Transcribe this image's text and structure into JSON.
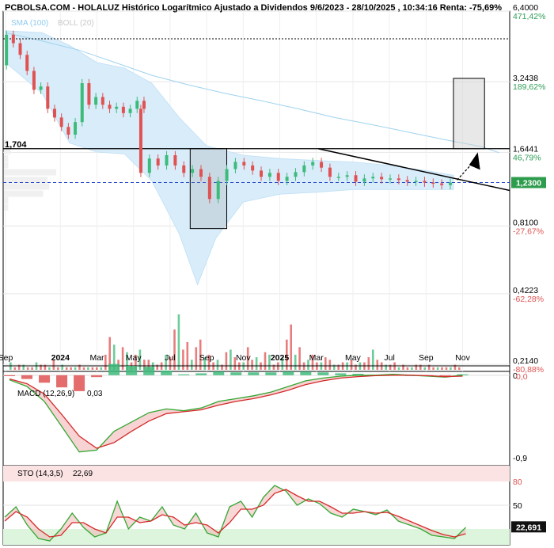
{
  "title": "PCBOLSA.COM - HOLALUZ Histórico Logarítmico Ajustado a Dividendos 9/6/2023 - 28/10/2025 , 10:34:16 Renta: -75,69%",
  "colors": {
    "up": "#3dbb7a",
    "down": "#e05252",
    "sma": "#9fd2ef",
    "bollinger_fill": "#d8ecfa",
    "macd_line": "#33a833",
    "signal_line": "#d42a2a",
    "price_label_bg": "#2e9c4d",
    "sto_band_high": "#fbe3e3",
    "sto_band_low": "#ddf5dd",
    "level_line": "#000000",
    "current_line": "#2244cc"
  },
  "chart_data": [
    {
      "type": "candlestick",
      "name": "price",
      "scale": "log",
      "ylim": [
        0.2,
        6.4
      ],
      "legend": {
        "sma": "SMA (100)",
        "bollinger": "BOLL (20)",
        "placement": "top-left"
      },
      "y_ticks": [
        {
          "value": 6.4,
          "label": "6,4000",
          "pct": "471,42%",
          "pct_color": "#2f9e57"
        },
        {
          "value": 3.2438,
          "label": "3,2438",
          "pct": "189,62%",
          "pct_color": "#2f9e57"
        },
        {
          "value": 1.6441,
          "label": "1,6441",
          "pct": "46,79%",
          "pct_color": "#2f9e57"
        },
        {
          "value": 0.81,
          "label": "0,8100",
          "pct": "-27,67%",
          "pct_color": "#e05252"
        },
        {
          "value": 0.4223,
          "label": "0,4223",
          "pct": "-62,28%",
          "pct_color": "#e05252"
        },
        {
          "value": 0.214,
          "label": "0,2140",
          "pct": "-80,88%",
          "pct_color": "#e05252"
        }
      ],
      "x_ticks": [
        {
          "month": 0,
          "label": "Sep",
          "bold": false
        },
        {
          "month": 3,
          "label": "2024",
          "bold": true
        },
        {
          "month": 5,
          "label": "Mar",
          "bold": false
        },
        {
          "month": 7,
          "label": "May",
          "bold": false
        },
        {
          "month": 9,
          "label": "Jul",
          "bold": false
        },
        {
          "month": 11,
          "label": "Sep",
          "bold": false
        },
        {
          "month": 13,
          "label": "Nov",
          "bold": false
        },
        {
          "month": 15,
          "label": "2025",
          "bold": true
        },
        {
          "month": 17,
          "label": "Mar",
          "bold": false
        },
        {
          "month": 19,
          "label": "May",
          "bold": false
        },
        {
          "month": 21,
          "label": "Jul",
          "bold": false
        },
        {
          "month": 23,
          "label": "Sep",
          "bold": false
        },
        {
          "month": 25,
          "label": "Nov",
          "bold": false
        }
      ],
      "level_label": "1,704",
      "level_value": 1.704,
      "top_level_value": 4.9,
      "current_price": 1.23,
      "current_label": "1,2300",
      "candles": [
        [
          3.8,
          5.1
        ],
        [
          5.1,
          4.7
        ],
        [
          4.7,
          4.2
        ],
        [
          4.2,
          3.6
        ],
        [
          3.6,
          3.0
        ],
        [
          3.0,
          3.1
        ],
        [
          3.1,
          2.5
        ],
        [
          2.5,
          2.3
        ],
        [
          2.3,
          2.1
        ],
        [
          2.1,
          1.95
        ],
        [
          1.95,
          2.2
        ],
        [
          2.2,
          3.2
        ],
        [
          3.2,
          2.6
        ],
        [
          2.6,
          2.8
        ],
        [
          2.8,
          2.6
        ],
        [
          2.6,
          2.5
        ],
        [
          2.5,
          2.55
        ],
        [
          2.55,
          2.4
        ],
        [
          2.4,
          2.5
        ],
        [
          2.5,
          2.7
        ],
        [
          2.7,
          2.5
        ],
        [
          2.5,
          1.35
        ],
        [
          1.35,
          1.55
        ],
        [
          1.55,
          1.45
        ],
        [
          1.45,
          1.6
        ],
        [
          1.6,
          1.45
        ],
        [
          1.45,
          1.35
        ],
        [
          1.35,
          1.4
        ],
        [
          1.4,
          1.3
        ],
        [
          1.3,
          1.05
        ],
        [
          1.05,
          1.25
        ],
        [
          1.25,
          1.4
        ],
        [
          1.4,
          1.5
        ],
        [
          1.5,
          1.45
        ],
        [
          1.45,
          1.38
        ],
        [
          1.38,
          1.3
        ],
        [
          1.3,
          1.35
        ],
        [
          1.35,
          1.25
        ],
        [
          1.25,
          1.3
        ],
        [
          1.3,
          1.36
        ],
        [
          1.36,
          1.45
        ],
        [
          1.45,
          1.5
        ],
        [
          1.5,
          1.42
        ],
        [
          1.42,
          1.3
        ],
        [
          1.3,
          1.3
        ],
        [
          1.3,
          1.32
        ],
        [
          1.32,
          1.24
        ],
        [
          1.24,
          1.28
        ],
        [
          1.28,
          1.3
        ],
        [
          1.3,
          1.27
        ],
        [
          1.27,
          1.28
        ],
        [
          1.28,
          1.26
        ],
        [
          1.26,
          1.24
        ],
        [
          1.24,
          1.25
        ],
        [
          1.25,
          1.23
        ],
        [
          1.23,
          1.22
        ],
        [
          1.22,
          1.2
        ],
        [
          1.2,
          1.23
        ]
      ],
      "sma": [
        [
          0,
          5.2
        ],
        [
          2,
          4.8
        ],
        [
          4,
          4.4
        ],
        [
          6,
          3.9
        ],
        [
          8,
          3.45
        ],
        [
          10,
          3.15
        ],
        [
          12,
          2.9
        ],
        [
          14,
          2.7
        ],
        [
          16,
          2.5
        ],
        [
          18,
          2.3
        ],
        [
          20,
          2.15
        ],
        [
          22,
          2.0
        ],
        [
          24,
          1.86
        ],
        [
          26,
          1.74
        ],
        [
          27,
          1.64
        ]
      ],
      "bollinger_upper": [
        [
          0,
          5.3
        ],
        [
          2,
          5.2
        ],
        [
          3.5,
          4.6
        ],
        [
          5,
          3.9
        ],
        [
          6.5,
          3.7
        ],
        [
          8,
          3.2
        ],
        [
          9.5,
          2.3
        ],
        [
          11,
          1.75
        ],
        [
          13,
          1.6
        ],
        [
          15,
          1.55
        ],
        [
          17,
          1.52
        ],
        [
          19,
          1.5
        ],
        [
          21,
          1.45
        ],
        [
          23,
          1.38
        ],
        [
          24.5,
          1.32
        ]
      ],
      "bollinger_lower": [
        [
          0,
          3.9
        ],
        [
          2,
          2.9
        ],
        [
          3.5,
          1.8
        ],
        [
          5,
          1.65
        ],
        [
          6.5,
          1.62
        ],
        [
          8,
          1.25
        ],
        [
          9.5,
          0.75
        ],
        [
          10.5,
          0.46
        ],
        [
          11.5,
          0.72
        ],
        [
          13,
          1.02
        ],
        [
          15,
          1.1
        ],
        [
          17,
          1.12
        ],
        [
          19,
          1.15
        ],
        [
          21,
          1.15
        ],
        [
          23,
          1.15
        ],
        [
          24.5,
          1.15
        ]
      ],
      "volume_profile": [
        0.05,
        0.08,
        0.05,
        0.05,
        0.6,
        0.5,
        0.52,
        0.45,
        0.05,
        0.05
      ],
      "volume": [
        3,
        1,
        2,
        2,
        1,
        1,
        3,
        2,
        2,
        1,
        4,
        1,
        2,
        1,
        1,
        1,
        2,
        1,
        1,
        1,
        1,
        1,
        6,
        13,
        10,
        4,
        9,
        7,
        3,
        6,
        8,
        4,
        4,
        3,
        2,
        3,
        6,
        5,
        16,
        22,
        8,
        11,
        4,
        9,
        12,
        5,
        6,
        3,
        4,
        2,
        7,
        8,
        5,
        3,
        3,
        9,
        4,
        5,
        3,
        7,
        6,
        2,
        3,
        5,
        12,
        18,
        6,
        9,
        3,
        4,
        6,
        3,
        3,
        5,
        4,
        2,
        2,
        3,
        3,
        4,
        2,
        3,
        3,
        5,
        8,
        4,
        3,
        2,
        2,
        3,
        1,
        2,
        1,
        1,
        2,
        2,
        1,
        2,
        1,
        1,
        1,
        1,
        1,
        2,
        1
      ]
    },
    {
      "type": "line",
      "name": "MACD (12,26,9)",
      "label": "MACD (12,26,9)",
      "value_label": "0,03",
      "y_ticks": [
        "0",
        "-0,9"
      ],
      "extra_tick": "0,0",
      "ylim": [
        -1.0,
        0.1
      ],
      "series": [
        {
          "name": "MACD",
          "points": [
            [
              0,
              -0.05
            ],
            [
              1,
              -0.12
            ],
            [
              2,
              -0.28
            ],
            [
              3,
              -0.55
            ],
            [
              4,
              -0.82
            ],
            [
              5,
              -0.8
            ],
            [
              6,
              -0.6
            ],
            [
              7,
              -0.5
            ],
            [
              8,
              -0.4
            ],
            [
              9,
              -0.36
            ],
            [
              10,
              -0.38
            ],
            [
              11,
              -0.35
            ],
            [
              12,
              -0.28
            ],
            [
              13,
              -0.25
            ],
            [
              14,
              -0.22
            ],
            [
              15,
              -0.18
            ],
            [
              16,
              -0.12
            ],
            [
              17,
              -0.06
            ],
            [
              18,
              -0.03
            ],
            [
              19,
              -0.01
            ],
            [
              20,
              0.0
            ],
            [
              21,
              0.0
            ],
            [
              22,
              0.01
            ],
            [
              23,
              0.0
            ],
            [
              24,
              -0.01
            ],
            [
              25,
              -0.02
            ],
            [
              26,
              0.0
            ]
          ]
        },
        {
          "name": "Signal",
          "points": [
            [
              0,
              -0.04
            ],
            [
              1,
              -0.09
            ],
            [
              2,
              -0.2
            ],
            [
              3,
              -0.42
            ],
            [
              4,
              -0.65
            ],
            [
              5,
              -0.78
            ],
            [
              6,
              -0.72
            ],
            [
              7,
              -0.6
            ],
            [
              8,
              -0.49
            ],
            [
              9,
              -0.41
            ],
            [
              10,
              -0.39
            ],
            [
              11,
              -0.37
            ],
            [
              12,
              -0.32
            ],
            [
              13,
              -0.28
            ],
            [
              14,
              -0.25
            ],
            [
              15,
              -0.21
            ],
            [
              16,
              -0.16
            ],
            [
              17,
              -0.1
            ],
            [
              18,
              -0.06
            ],
            [
              19,
              -0.03
            ],
            [
              20,
              -0.015
            ],
            [
              21,
              -0.005
            ],
            [
              22,
              0.0
            ],
            [
              23,
              0.0
            ],
            [
              24,
              -0.005
            ],
            [
              25,
              -0.015
            ],
            [
              26,
              -0.01
            ]
          ]
        }
      ],
      "histogram": [
        -0.01,
        -0.04,
        -0.08,
        -0.13,
        -0.17,
        -0.02,
        0.12,
        0.1,
        0.09,
        0.05,
        0.01,
        0.02,
        0.04,
        0.03,
        0.03,
        0.03,
        0.04,
        0.04,
        0.03,
        0.02,
        0.015,
        0.005,
        0.01,
        0.0,
        -0.005,
        -0.005,
        0.01
      ]
    },
    {
      "type": "line",
      "name": "STO (14,3,5)",
      "label": "STO (14,3,5)",
      "value_label": "22,69",
      "current_label": "22,691",
      "y_ticks": [
        "80",
        "50",
        "20"
      ],
      "ylim": [
        0,
        100
      ],
      "series": [
        {
          "name": "%K",
          "points": [
            [
              0,
              35
            ],
            [
              1,
              48
            ],
            [
              2,
              25
            ],
            [
              3,
              8
            ],
            [
              4,
              5
            ],
            [
              5,
              20
            ],
            [
              6,
              40
            ],
            [
              7,
              22
            ],
            [
              8,
              10
            ],
            [
              9,
              15
            ],
            [
              10,
              55
            ],
            [
              11,
              20
            ],
            [
              12,
              35
            ],
            [
              13,
              30
            ],
            [
              14,
              48
            ],
            [
              15,
              25
            ],
            [
              16,
              20
            ],
            [
              17,
              40
            ],
            [
              18,
              15
            ],
            [
              19,
              10
            ],
            [
              20,
              48
            ],
            [
              21,
              55
            ],
            [
              22,
              35
            ],
            [
              23,
              60
            ],
            [
              24,
              75
            ],
            [
              25,
              68
            ],
            [
              26,
              50
            ],
            [
              27,
              58
            ],
            [
              28,
              52
            ],
            [
              29,
              40
            ],
            [
              30,
              35
            ],
            [
              31,
              45
            ],
            [
              32,
              42
            ],
            [
              33,
              38
            ],
            [
              34,
              44
            ],
            [
              35,
              30
            ],
            [
              36,
              25
            ],
            [
              37,
              20
            ],
            [
              38,
              12
            ],
            [
              39,
              10
            ],
            [
              40,
              8
            ],
            [
              41,
              22
            ]
          ]
        },
        {
          "name": "%D",
          "points": [
            [
              0,
              30
            ],
            [
              1,
              42
            ],
            [
              2,
              35
            ],
            [
              3,
              20
            ],
            [
              4,
              10
            ],
            [
              5,
              12
            ],
            [
              6,
              28
            ],
            [
              7,
              28
            ],
            [
              8,
              20
            ],
            [
              9,
              15
            ],
            [
              10,
              35
            ],
            [
              11,
              35
            ],
            [
              12,
              28
            ],
            [
              13,
              30
            ],
            [
              14,
              38
            ],
            [
              15,
              35
            ],
            [
              16,
              25
            ],
            [
              17,
              28
            ],
            [
              18,
              25
            ],
            [
              19,
              15
            ],
            [
              20,
              28
            ],
            [
              21,
              45
            ],
            [
              22,
              45
            ],
            [
              23,
              50
            ],
            [
              24,
              65
            ],
            [
              25,
              70
            ],
            [
              26,
              62
            ],
            [
              27,
              55
            ],
            [
              28,
              55
            ],
            [
              29,
              48
            ],
            [
              30,
              40
            ],
            [
              31,
              40
            ],
            [
              32,
              42
            ],
            [
              33,
              40
            ],
            [
              34,
              41
            ],
            [
              35,
              36
            ],
            [
              36,
              30
            ],
            [
              37,
              24
            ],
            [
              38,
              18
            ],
            [
              39,
              13
            ],
            [
              40,
              10
            ],
            [
              41,
              14
            ]
          ]
        }
      ]
    }
  ]
}
